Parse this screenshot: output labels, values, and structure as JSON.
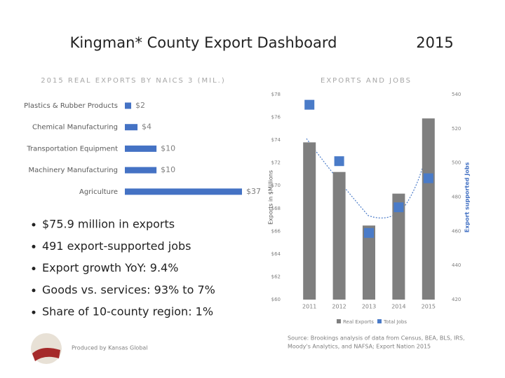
{
  "header": {
    "title": "Kingman* County Export Dashboard",
    "year": "2015"
  },
  "bullets": [
    "$75.9 million in exports",
    "491 export-supported jobs",
    "Export growth YoY:  9.4%",
    "Goods vs. services: 93% to 7%",
    "Share of 10-county region: 1%"
  ],
  "footer": {
    "credit": "Produced by Kansas Global",
    "source": [
      "Source: Brookings analysis of data from Census, BEA, BLS, IRS,",
      "Moody's Analytics, and NAFSA; Export Nation 2015"
    ]
  },
  "chart_data": [
    {
      "type": "hbar",
      "title": "2015 REAL EXPORTS BY NAICS 3 (MIL.)",
      "categories": [
        "Plastics & Rubber Products",
        "Chemical Manufacturing",
        "Transportation Equipment",
        "Machinery Manufacturing",
        "Agriculture"
      ],
      "values": [
        2,
        4,
        10,
        10,
        37
      ],
      "value_labels": [
        "$2",
        "$4",
        "$10",
        "$10",
        "$37"
      ],
      "color": "#4472c4"
    },
    {
      "type": "combo",
      "title": "EXPORTS AND JOBS",
      "categories": [
        "2011",
        "2012",
        "2013",
        "2014",
        "2015"
      ],
      "y_label": "Exports in $Millions",
      "y2_label": "Export supported Jobs",
      "ylim": [
        60,
        78
      ],
      "yticks": [
        {
          "value": 60,
          "label": "$60"
        },
        {
          "value": 62,
          "label": "$62"
        },
        {
          "value": 64,
          "label": "$64"
        },
        {
          "value": 66,
          "label": "$66"
        },
        {
          "value": 68,
          "label": "$68"
        },
        {
          "value": 70,
          "label": "$70"
        },
        {
          "value": 72,
          "label": "$72"
        },
        {
          "value": 74,
          "label": "$74"
        },
        {
          "value": 76,
          "label": "$76"
        },
        {
          "value": 78,
          "label": "$78"
        }
      ],
      "y2lim": [
        420,
        540
      ],
      "y2ticks": [
        420,
        440,
        460,
        480,
        500,
        520,
        540
      ],
      "series": [
        {
          "name": "Real Exports",
          "type": "bar",
          "color": "#7f7f7f",
          "values": [
            73.8,
            71.2,
            66.5,
            69.3,
            75.9
          ]
        },
        {
          "name": "Total Jobs",
          "type": "marker",
          "axis": "y2",
          "color": "#4a7bc8",
          "values": [
            534,
            501,
            459,
            474,
            491
          ]
        }
      ]
    }
  ]
}
